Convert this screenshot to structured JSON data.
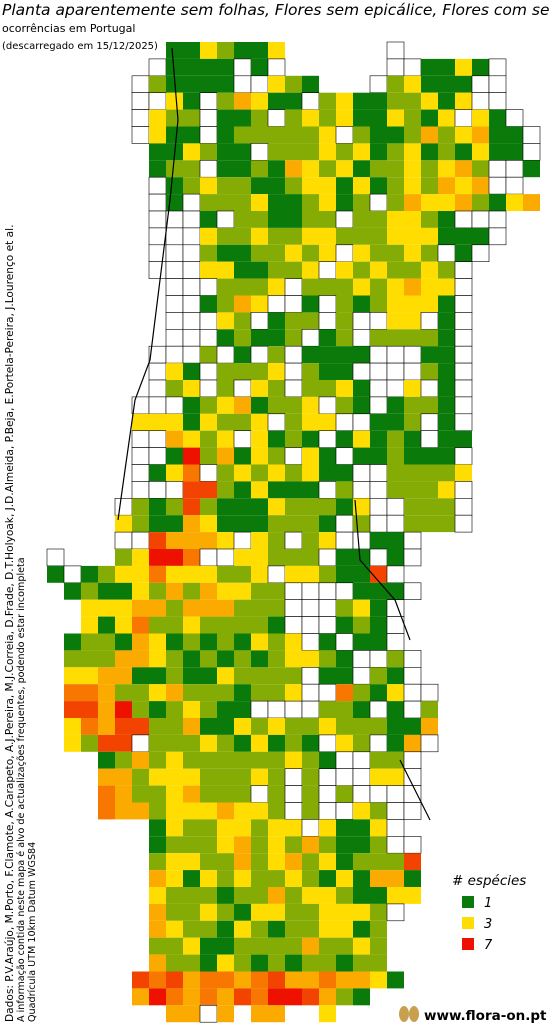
{
  "header": {
    "title": "Planta aparentemente sem folhas, Flores sem epicálice, Flores com se",
    "subtitle": "ocorrências em Portugal",
    "date": "(descarregado em 15/12/2025)"
  },
  "credits": [
    "Dados: P.V.Araújo, M.Porto, F.Clamote, A.Carapeto, A.J.Pereira, M.J.Correia, D.Frade, D.T.Holyoak, J.D.Almeida, P.Beja, E.Portela-Pereira, J.Lourenço et al.",
    "A informação contida neste mapa é alvo de actualizações frequentes, podendo estar incompleta",
    "Quadrícula UTM 10km Datum WGS84"
  ],
  "legend": {
    "title": "# espécies",
    "items": [
      {
        "value": 1,
        "color": "#0a7a0a"
      },
      {
        "value": 3,
        "color": "#ffdd00"
      },
      {
        "value": 7,
        "color": "#ee1100"
      }
    ]
  },
  "footer": "www.flora-on.pt",
  "map": {
    "rows": [
      [
        null,
        null,
        null,
        null,
        null,
        null,
        null,
        1,
        1,
        3,
        2,
        1,
        1,
        3,
        null,
        null,
        null,
        null,
        null,
        null,
        0
      ],
      [
        null,
        null,
        null,
        null,
        null,
        null,
        0,
        1,
        1,
        1,
        1,
        0,
        1,
        0,
        null,
        null,
        null,
        null,
        null,
        null,
        0,
        0,
        1,
        1,
        3,
        1,
        0
      ],
      [
        null,
        null,
        null,
        null,
        null,
        0,
        2,
        1,
        1,
        1,
        1,
        0,
        0,
        3,
        2,
        1,
        null,
        null,
        null,
        0,
        2,
        3,
        1,
        1,
        1,
        0,
        0
      ],
      [
        null,
        null,
        null,
        null,
        null,
        0,
        0,
        3,
        1,
        0,
        2,
        4,
        3,
        1,
        1,
        0,
        2,
        3,
        1,
        1,
        2,
        2,
        3,
        1,
        3,
        0,
        0
      ],
      [
        null,
        null,
        null,
        null,
        null,
        0,
        3,
        2,
        2,
        0,
        1,
        1,
        2,
        0,
        2,
        3,
        2,
        3,
        1,
        1,
        3,
        2,
        1,
        3,
        0,
        3,
        1,
        0
      ],
      [
        null,
        null,
        null,
        null,
        null,
        0,
        3,
        1,
        1,
        0,
        1,
        2,
        2,
        2,
        2,
        2,
        3,
        0,
        2,
        1,
        1,
        2,
        4,
        2,
        3,
        4,
        1,
        1,
        0
      ],
      [
        null,
        null,
        null,
        null,
        null,
        null,
        1,
        1,
        3,
        2,
        1,
        1,
        0,
        2,
        2,
        2,
        3,
        2,
        3,
        1,
        2,
        3,
        1,
        2,
        1,
        3,
        1,
        1,
        0
      ],
      [
        null,
        null,
        null,
        null,
        null,
        null,
        1,
        2,
        2,
        0,
        1,
        1,
        2,
        1,
        4,
        3,
        2,
        3,
        1,
        2,
        2,
        3,
        2,
        3,
        4,
        2,
        0,
        0,
        1
      ],
      [
        null,
        null,
        null,
        null,
        null,
        null,
        0,
        1,
        2,
        3,
        2,
        2,
        1,
        1,
        2,
        3,
        3,
        1,
        3,
        1,
        2,
        3,
        2,
        4,
        3,
        4,
        0,
        0
      ],
      [
        null,
        null,
        null,
        null,
        null,
        null,
        0,
        1,
        0,
        2,
        2,
        2,
        3,
        1,
        1,
        2,
        3,
        1,
        2,
        0,
        2,
        4,
        3,
        3,
        4,
        2,
        1,
        3,
        4
      ],
      [
        null,
        null,
        null,
        null,
        null,
        null,
        0,
        0,
        0,
        1,
        0,
        2,
        2,
        1,
        1,
        2,
        2,
        0,
        2,
        2,
        3,
        3,
        2,
        1,
        0,
        0,
        0
      ],
      [
        null,
        null,
        null,
        null,
        null,
        null,
        0,
        0,
        0,
        3,
        2,
        2,
        3,
        2,
        2,
        3,
        3,
        2,
        2,
        2,
        3,
        3,
        3,
        1,
        1,
        1,
        0
      ],
      [
        null,
        null,
        null,
        null,
        null,
        null,
        0,
        0,
        0,
        2,
        1,
        1,
        2,
        2,
        3,
        2,
        3,
        0,
        3,
        2,
        2,
        3,
        2,
        0,
        1,
        0
      ],
      [
        null,
        null,
        null,
        null,
        null,
        null,
        0,
        0,
        0,
        3,
        3,
        1,
        1,
        2,
        2,
        3,
        0,
        3,
        2,
        3,
        2,
        2,
        3,
        2,
        0
      ],
      [
        null,
        null,
        null,
        null,
        null,
        null,
        null,
        0,
        0,
        0,
        2,
        2,
        2,
        3,
        0,
        2,
        2,
        2,
        3,
        2,
        3,
        4,
        3,
        3,
        0
      ],
      [
        null,
        null,
        null,
        null,
        null,
        null,
        null,
        0,
        0,
        1,
        2,
        4,
        3,
        0,
        0,
        1,
        0,
        2,
        1,
        2,
        3,
        3,
        3,
        1,
        0
      ],
      [
        null,
        null,
        null,
        null,
        null,
        null,
        null,
        0,
        0,
        0,
        3,
        2,
        0,
        1,
        2,
        2,
        0,
        2,
        0,
        0,
        3,
        3,
        0,
        1,
        0
      ],
      [
        null,
        null,
        null,
        null,
        null,
        null,
        null,
        0,
        0,
        0,
        1,
        2,
        1,
        1,
        2,
        0,
        1,
        2,
        0,
        2,
        2,
        2,
        2,
        1,
        0
      ],
      [
        null,
        null,
        null,
        null,
        null,
        null,
        0,
        0,
        0,
        2,
        0,
        1,
        0,
        2,
        0,
        1,
        1,
        1,
        1,
        0,
        0,
        0,
        1,
        1,
        0
      ],
      [
        null,
        null,
        null,
        null,
        null,
        null,
        0,
        3,
        1,
        0,
        2,
        2,
        2,
        3,
        0,
        2,
        1,
        1,
        0,
        0,
        0,
        0,
        2,
        1,
        0
      ],
      [
        null,
        null,
        null,
        null,
        null,
        null,
        0,
        2,
        3,
        0,
        2,
        0,
        3,
        2,
        0,
        2,
        2,
        3,
        1,
        0,
        0,
        3,
        0,
        1,
        0
      ],
      [
        null,
        null,
        null,
        null,
        null,
        0,
        0,
        0,
        1,
        2,
        3,
        4,
        1,
        2,
        2,
        3,
        0,
        2,
        1,
        0,
        1,
        2,
        2,
        1,
        0
      ],
      [
        null,
        null,
        null,
        null,
        null,
        3,
        3,
        3,
        1,
        3,
        2,
        2,
        3,
        0,
        2,
        3,
        3,
        0,
        0,
        1,
        1,
        2,
        0,
        1,
        0
      ],
      [
        null,
        null,
        null,
        null,
        null,
        0,
        0,
        4,
        3,
        2,
        3,
        0,
        3,
        1,
        2,
        1,
        0,
        1,
        3,
        1,
        2,
        1,
        0,
        1,
        1
      ],
      [
        null,
        null,
        null,
        null,
        null,
        0,
        0,
        1,
        7,
        2,
        4,
        1,
        3,
        2,
        0,
        3,
        1,
        0,
        1,
        1,
        2,
        1,
        1,
        1,
        0
      ],
      [
        null,
        null,
        null,
        null,
        null,
        0,
        1,
        3,
        5,
        0,
        2,
        3,
        2,
        3,
        2,
        3,
        1,
        1,
        0,
        0,
        2,
        2,
        2,
        2,
        3
      ],
      [
        null,
        null,
        null,
        null,
        null,
        0,
        0,
        0,
        6,
        6,
        2,
        1,
        3,
        1,
        1,
        1,
        0,
        2,
        0,
        0,
        2,
        2,
        2,
        3,
        0
      ],
      [
        null,
        null,
        null,
        null,
        0,
        2,
        1,
        2,
        6,
        2,
        1,
        1,
        1,
        3,
        2,
        2,
        2,
        1,
        3,
        0,
        0,
        2,
        2,
        2,
        0
      ],
      [
        null,
        null,
        null,
        null,
        3,
        2,
        1,
        1,
        4,
        3,
        1,
        1,
        1,
        2,
        2,
        2,
        1,
        0,
        2,
        0,
        0,
        2,
        2,
        2,
        0
      ],
      [
        null,
        null,
        null,
        null,
        0,
        0,
        6,
        4,
        4,
        4,
        3,
        0,
        3,
        2,
        0,
        2,
        3,
        0,
        0,
        1,
        1,
        0
      ],
      [
        0,
        null,
        null,
        null,
        2,
        3,
        7,
        7,
        5,
        0,
        0,
        3,
        3,
        2,
        2,
        2,
        0,
        1,
        1,
        0,
        1,
        0
      ],
      [
        1,
        0,
        1,
        2,
        3,
        3,
        5,
        3,
        3,
        3,
        2,
        2,
        3,
        0,
        3,
        3,
        2,
        1,
        1,
        6,
        0
      ],
      [
        null,
        1,
        2,
        1,
        1,
        3,
        2,
        4,
        2,
        4,
        3,
        3,
        2,
        2,
        0,
        0,
        0,
        0,
        1,
        1,
        1,
        0
      ],
      [
        null,
        null,
        3,
        3,
        3,
        4,
        4,
        2,
        4,
        4,
        4,
        2,
        2,
        2,
        0,
        0,
        0,
        2,
        3,
        1,
        0
      ],
      [
        null,
        null,
        3,
        1,
        3,
        5,
        2,
        2,
        3,
        2,
        2,
        2,
        2,
        1,
        0,
        0,
        0,
        1,
        2,
        1,
        0
      ],
      [
        null,
        1,
        2,
        2,
        1,
        4,
        3,
        1,
        2,
        1,
        2,
        1,
        3,
        2,
        3,
        0,
        1,
        0,
        1,
        1,
        0
      ],
      [
        null,
        2,
        2,
        2,
        4,
        4,
        3,
        2,
        1,
        2,
        1,
        2,
        1,
        2,
        3,
        3,
        2,
        1,
        0,
        0,
        2,
        0
      ],
      [
        null,
        3,
        3,
        4,
        4,
        1,
        1,
        2,
        1,
        1,
        3,
        2,
        2,
        2,
        2,
        0,
        1,
        1,
        0,
        2,
        1,
        0
      ],
      [
        null,
        5,
        5,
        4,
        2,
        2,
        3,
        4,
        2,
        2,
        2,
        1,
        2,
        2,
        3,
        0,
        0,
        5,
        2,
        1,
        3,
        0,
        0
      ],
      [
        null,
        6,
        6,
        4,
        7,
        2,
        1,
        2,
        3,
        2,
        1,
        1,
        0,
        0,
        0,
        0,
        2,
        2,
        1,
        0,
        1,
        0,
        2
      ],
      [
        null,
        3,
        5,
        4,
        6,
        6,
        2,
        2,
        4,
        1,
        1,
        3,
        2,
        3,
        2,
        2,
        3,
        2,
        2,
        2,
        1,
        1,
        4
      ],
      [
        null,
        3,
        2,
        6,
        6,
        0,
        2,
        2,
        2,
        3,
        2,
        1,
        3,
        1,
        2,
        1,
        0,
        3,
        2,
        0,
        1,
        4,
        0
      ],
      [
        null,
        null,
        null,
        1,
        2,
        4,
        2,
        3,
        2,
        2,
        2,
        2,
        2,
        2,
        3,
        2,
        1,
        0,
        0,
        2,
        2,
        0
      ],
      [
        null,
        null,
        null,
        4,
        4,
        2,
        3,
        3,
        3,
        2,
        2,
        2,
        3,
        2,
        0,
        2,
        0,
        0,
        0,
        3,
        3,
        0
      ],
      [
        null,
        null,
        null,
        5,
        4,
        2,
        2,
        3,
        4,
        2,
        2,
        2,
        0,
        2,
        0,
        2,
        0,
        2,
        0,
        0,
        0,
        0
      ],
      [
        null,
        null,
        null,
        5,
        4,
        4,
        2,
        3,
        3,
        3,
        4,
        3,
        3,
        2,
        0,
        2,
        0,
        0,
        3,
        2,
        0,
        0
      ],
      [
        null,
        null,
        null,
        null,
        null,
        null,
        1,
        3,
        2,
        2,
        3,
        3,
        2,
        3,
        3,
        0,
        3,
        1,
        1,
        3,
        0
      ],
      [
        null,
        null,
        null,
        null,
        null,
        null,
        1,
        2,
        2,
        2,
        3,
        4,
        2,
        3,
        2,
        4,
        2,
        1,
        1,
        2,
        0,
        0
      ],
      [
        null,
        null,
        null,
        null,
        null,
        null,
        2,
        3,
        3,
        2,
        2,
        4,
        2,
        3,
        4,
        2,
        3,
        1,
        2,
        2,
        2,
        6
      ],
      [
        null,
        null,
        null,
        null,
        null,
        null,
        4,
        3,
        1,
        3,
        2,
        3,
        2,
        2,
        3,
        2,
        1,
        3,
        1,
        4,
        4,
        1
      ],
      [
        null,
        null,
        null,
        null,
        null,
        null,
        3,
        2,
        2,
        2,
        1,
        2,
        2,
        4,
        2,
        3,
        3,
        2,
        1,
        1,
        3,
        3
      ],
      [
        null,
        null,
        null,
        null,
        null,
        null,
        4,
        2,
        2,
        3,
        2,
        1,
        3,
        3,
        2,
        2,
        3,
        3,
        3,
        2,
        0
      ],
      [
        null,
        null,
        null,
        null,
        null,
        null,
        4,
        3,
        2,
        2,
        1,
        3,
        2,
        1,
        2,
        2,
        3,
        3,
        1,
        2
      ],
      [
        null,
        null,
        null,
        null,
        null,
        null,
        2,
        2,
        3,
        1,
        1,
        2,
        2,
        2,
        2,
        4,
        2,
        2,
        3,
        2
      ],
      [
        null,
        null,
        null,
        null,
        null,
        null,
        4,
        2,
        2,
        1,
        3,
        2,
        1,
        2,
        1,
        2,
        2,
        1,
        2,
        2
      ],
      [
        null,
        null,
        null,
        null,
        null,
        6,
        5,
        6,
        4,
        5,
        5,
        4,
        5,
        6,
        4,
        4,
        5,
        4,
        4,
        3,
        1
      ],
      [
        null,
        null,
        null,
        null,
        null,
        4,
        7,
        5,
        4,
        5,
        4,
        6,
        5,
        7,
        7,
        6,
        4,
        2,
        1
      ],
      [
        null,
        null,
        null,
        null,
        null,
        null,
        null,
        4,
        4,
        0,
        4,
        null,
        4,
        4,
        null,
        null,
        3
      ]
    ]
  }
}
